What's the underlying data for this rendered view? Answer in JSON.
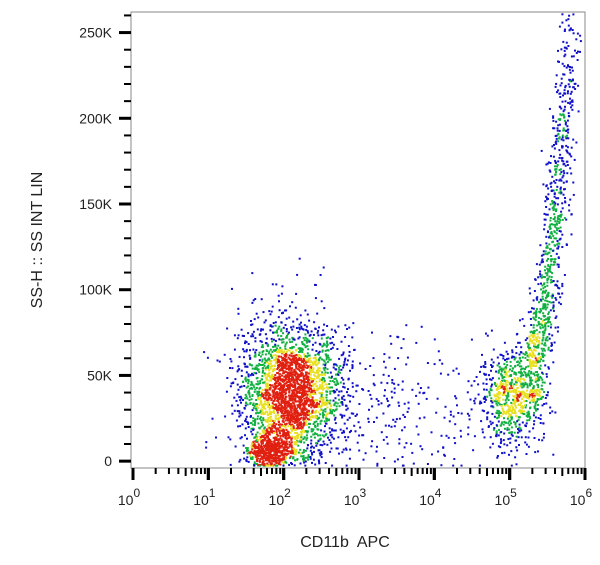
{
  "chart_data": {
    "type": "scatter",
    "title": "",
    "xlabel": "CD11b  APC",
    "ylabel": "SS-H :: SS INT LIN",
    "x_scale": "log",
    "xlim": [
      1,
      1000000
    ],
    "ylim": [
      -4000,
      262000
    ],
    "x_ticks": [
      {
        "base": "10",
        "exp": "0",
        "value": 1
      },
      {
        "base": "10",
        "exp": "1",
        "value": 10
      },
      {
        "base": "10",
        "exp": "2",
        "value": 100
      },
      {
        "base": "10",
        "exp": "3",
        "value": 1000
      },
      {
        "base": "10",
        "exp": "4",
        "value": 10000
      },
      {
        "base": "10",
        "exp": "5",
        "value": 100000
      },
      {
        "base": "10",
        "exp": "6",
        "value": 1000000
      }
    ],
    "y_ticks": [
      {
        "label": "0",
        "value": 0
      },
      {
        "label": "50K",
        "value": 50000
      },
      {
        "label": "100K",
        "value": 100000
      },
      {
        "label": "150K",
        "value": 150000
      },
      {
        "label": "200K",
        "value": 200000
      },
      {
        "label": "250K",
        "value": 250000
      }
    ],
    "grid": false,
    "density_colors": [
      "#1010c8",
      "#10b040",
      "#e8e020",
      "#e02010"
    ],
    "populations": [
      {
        "name": "",
        "x_center": 120,
        "x_log_sd": 0.33,
        "y_center": 40000,
        "y_sd": 18000,
        "count": 2600
      },
      {
        "name": "",
        "x_center": 65,
        "x_log_sd": 0.15,
        "y_center": 6000,
        "y_sd": 5000,
        "count": 500
      },
      {
        "name": "",
        "x_center": 100000,
        "x_log_sd": 0.2,
        "y_center": 38000,
        "y_sd": 12000,
        "count": 650
      },
      {
        "name": "",
        "x_center": 350000,
        "x_log_sd": 0.12,
        "y_center": 130000,
        "y_sd": 60000,
        "count": 900
      },
      {
        "name": "",
        "x_center": 3000,
        "x_log_sd": 0.7,
        "y_center": 30000,
        "y_sd": 20000,
        "count": 300
      }
    ]
  }
}
